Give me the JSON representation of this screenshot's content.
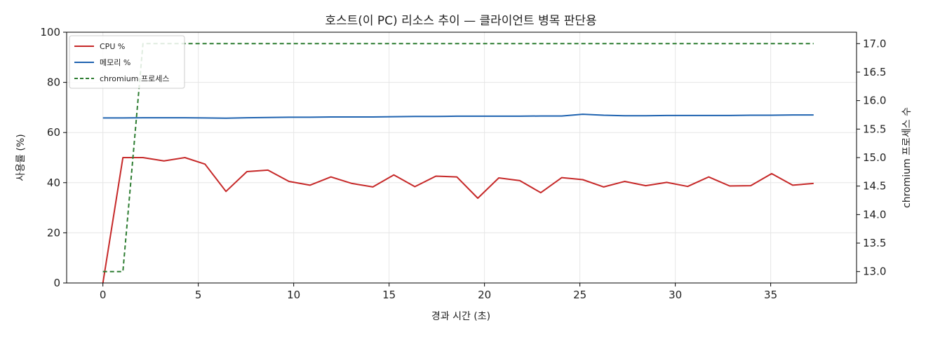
{
  "chart_data": {
    "type": "line",
    "title": "호스트(이 PC) 리소스 추이 — 클라이언트 병목 판단용",
    "xlabel": "경과 시간 (초)",
    "ylabel": "사용률 (%)",
    "y2label": "chromium 프로세스 수",
    "xlim": [
      -1.9,
      39.5
    ],
    "ylim": [
      0,
      100
    ],
    "y2lim": [
      12.8,
      17.2
    ],
    "xticks": [
      0,
      5,
      10,
      15,
      20,
      25,
      30,
      35
    ],
    "yticks": [
      0,
      20,
      40,
      60,
      80,
      100
    ],
    "y2ticks": [
      "13.0",
      "13.5",
      "14.0",
      "14.5",
      "15.0",
      "15.5",
      "16.0",
      "16.5",
      "17.0"
    ],
    "grid": true,
    "legend_position": "top-left",
    "x": [
      0,
      1.05,
      2.1,
      3.2,
      4.3,
      5.35,
      6.45,
      7.55,
      8.65,
      9.75,
      10.85,
      11.95,
      13.05,
      14.15,
      15.25,
      16.35,
      17.45,
      18.55,
      19.65,
      20.75,
      21.85,
      22.95,
      24.05,
      25.15,
      26.25,
      27.35,
      28.45,
      29.55,
      30.65,
      31.75,
      32.85,
      33.95,
      35.05,
      36.15,
      37.25
    ],
    "series": [
      {
        "name": "CPU %",
        "axis": "left",
        "color": "#c62828",
        "style": "solid",
        "values": [
          0,
          50,
          50,
          48.7,
          50,
          47.4,
          36.5,
          44.4,
          45,
          40.5,
          39,
          42.3,
          39.7,
          38.3,
          43.1,
          38.4,
          42.6,
          42.3,
          33.8,
          41.9,
          40.8,
          36,
          42,
          41.2,
          38.3,
          40.5,
          38.8,
          40.1,
          38.5,
          42.3,
          38.7,
          38.8,
          43.6,
          39,
          39.7
        ]
      },
      {
        "name": "메모리 %",
        "axis": "left",
        "color": "#1f63b0",
        "style": "solid",
        "values": [
          65.8,
          65.8,
          65.9,
          65.9,
          65.9,
          65.8,
          65.7,
          65.9,
          66,
          66.1,
          66.1,
          66.2,
          66.2,
          66.2,
          66.3,
          66.4,
          66.4,
          66.5,
          66.5,
          66.5,
          66.5,
          66.6,
          66.6,
          67.3,
          66.9,
          66.7,
          66.7,
          66.8,
          66.8,
          66.8,
          66.8,
          66.9,
          66.9,
          67,
          67
        ]
      },
      {
        "name": "chromium 프로세스",
        "axis": "right",
        "color": "#2e7d32",
        "style": "dashed",
        "values": [
          13,
          13,
          17,
          17,
          17,
          17,
          17,
          17,
          17,
          17,
          17,
          17,
          17,
          17,
          17,
          17,
          17,
          17,
          17,
          17,
          17,
          17,
          17,
          17,
          17,
          17,
          17,
          17,
          17,
          17,
          17,
          17,
          17,
          17,
          17
        ]
      }
    ]
  }
}
